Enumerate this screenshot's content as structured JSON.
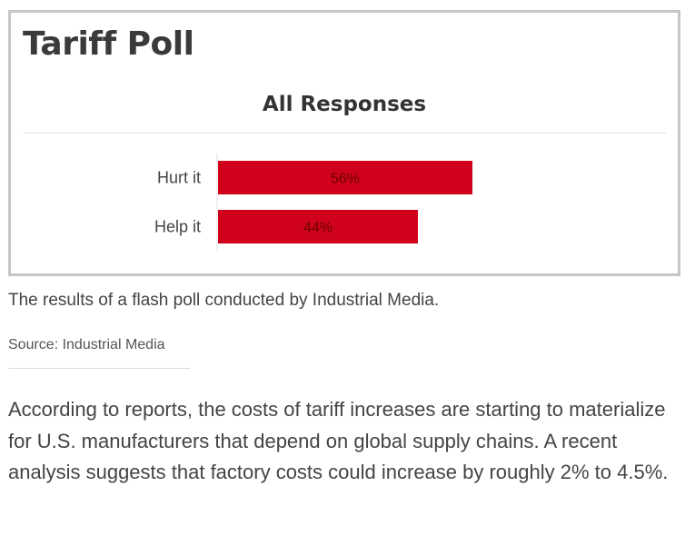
{
  "poll": {
    "title": "Tariff Poll"
  },
  "chart_data": {
    "type": "bar",
    "orientation": "horizontal",
    "title": "All Responses",
    "categories": [
      "Hurt it",
      "Help it"
    ],
    "values": [
      56,
      44
    ],
    "value_labels": [
      "56%",
      "44%"
    ],
    "unit": "%",
    "xlim": [
      0,
      100
    ],
    "bar_color": "#d0021b",
    "label_color": "#6b0000",
    "grid": false,
    "legend": "none"
  },
  "caption": "The results of a flash poll conducted by Industrial Media.",
  "source": "Source: Industrial Media",
  "body_text": "According to reports, the costs of tariff increases are starting to materialize for U.S. manufacturers that depend on global supply chains. A recent analysis suggests that factory costs could increase by roughly 2% to 4.5%."
}
